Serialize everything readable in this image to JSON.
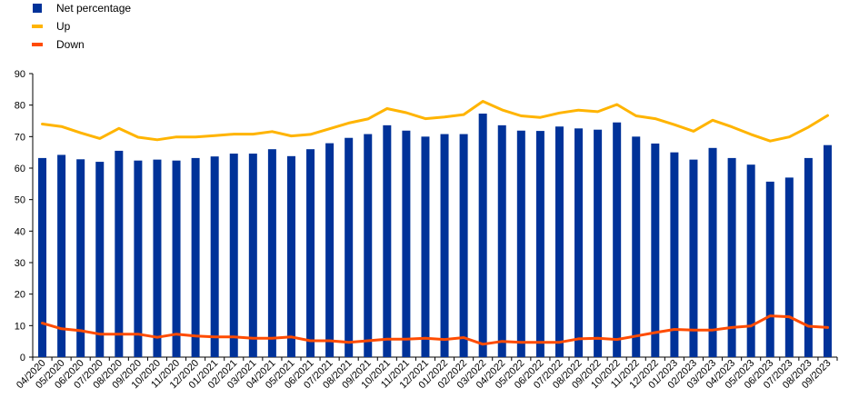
{
  "chart_data": {
    "type": "bar",
    "categories": [
      "04/2020",
      "05/2020",
      "06/2020",
      "07/2020",
      "08/2020",
      "09/2020",
      "10/2020",
      "11/2020",
      "12/2020",
      "01/2021",
      "02/2021",
      "03/2021",
      "04/2021",
      "05/2021",
      "06/2021",
      "07/2021",
      "08/2021",
      "09/2021",
      "10/2021",
      "11/2021",
      "12/2021",
      "01/2022",
      "02/2022",
      "03/2022",
      "04/2022",
      "05/2022",
      "06/2022",
      "07/2022",
      "08/2022",
      "09/2022",
      "10/2022",
      "11/2022",
      "12/2022",
      "01/2023",
      "02/2023",
      "03/2023",
      "04/2023",
      "05/2023",
      "06/2023",
      "07/2023",
      "08/2023",
      "09/2023"
    ],
    "series": [
      {
        "name": "Net percentage",
        "type": "bar",
        "color": "#003299",
        "values": [
          63.2,
          64.2,
          62.8,
          62.0,
          65.5,
          62.4,
          62.7,
          62.4,
          63.2,
          63.7,
          64.6,
          64.6,
          66.0,
          63.8,
          66.0,
          67.9,
          69.6,
          70.8,
          73.6,
          71.9,
          70.0,
          70.8,
          70.8,
          77.3,
          73.6,
          71.9,
          71.8,
          73.2,
          72.6,
          72.2,
          74.5,
          70.0,
          67.8,
          65.0,
          62.7,
          66.4,
          63.2,
          61.1,
          55.7,
          57.0,
          63.2,
          67.3
        ]
      },
      {
        "name": "Up",
        "type": "line",
        "color": "#FFB400",
        "values": [
          74.0,
          73.2,
          71.2,
          69.4,
          72.6,
          69.8,
          69.0,
          69.9,
          69.9,
          70.3,
          70.8,
          70.8,
          71.6,
          70.2,
          70.7,
          72.5,
          74.3,
          75.6,
          78.9,
          77.6,
          75.7,
          76.2,
          77.0,
          81.2,
          78.5,
          76.6,
          76.1,
          77.5,
          78.4,
          77.9,
          80.2,
          76.6,
          75.7,
          73.8,
          71.7,
          75.2,
          73.1,
          70.7,
          68.6,
          69.9,
          73.0,
          76.7
        ]
      },
      {
        "name": "Down",
        "type": "line",
        "color": "#FF4B00",
        "values": [
          10.8,
          9.0,
          8.4,
          7.3,
          7.3,
          7.3,
          6.3,
          7.3,
          6.7,
          6.4,
          6.4,
          6.0,
          6.0,
          6.4,
          5.2,
          5.2,
          4.7,
          5.2,
          5.7,
          5.7,
          6.0,
          5.6,
          6.2,
          4.1,
          5.0,
          4.7,
          4.7,
          4.7,
          5.8,
          6.0,
          5.6,
          6.7,
          7.8,
          8.8,
          8.6,
          8.6,
          9.4,
          9.9,
          13.1,
          12.8,
          9.8,
          9.4
        ]
      }
    ],
    "ylim": [
      0,
      90
    ],
    "yticks": [
      0,
      10,
      20,
      30,
      40,
      50,
      60,
      70,
      80,
      90
    ],
    "legend_position": "top-left",
    "grid": false
  }
}
